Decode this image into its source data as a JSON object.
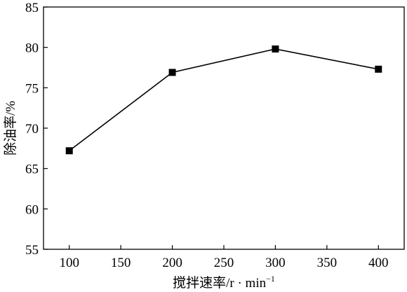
{
  "chart_data": {
    "type": "line",
    "xlabel": "搅拌速率/r · min",
    "xlabel_sup": "−1",
    "ylabel": "除油率/%",
    "xlim": [
      75,
      425
    ],
    "ylim": [
      55,
      85
    ],
    "xticks": [
      100,
      150,
      200,
      250,
      300,
      350,
      400
    ],
    "yticks": [
      55,
      60,
      65,
      70,
      75,
      80,
      85
    ],
    "grid": false,
    "series": [
      {
        "x": [
          100,
          200,
          300,
          400
        ],
        "y": [
          67.2,
          76.9,
          79.8,
          77.3
        ]
      }
    ]
  }
}
